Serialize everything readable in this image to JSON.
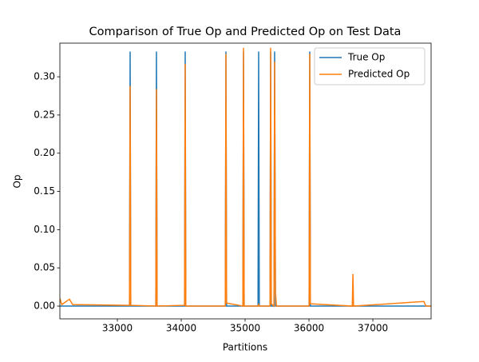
{
  "chart_data": {
    "type": "line",
    "title": "Comparison of True Op and Predicted Op on Test Data",
    "xlabel": "Partitions",
    "ylabel": "Op",
    "x": [
      32100,
      32130,
      32250,
      32300,
      33190,
      33200,
      33210,
      33602,
      33612,
      33622,
      34052,
      34062,
      34072,
      34690,
      34700,
      34710,
      34965,
      34975,
      34985,
      35202,
      35212,
      35222,
      35390,
      35400,
      35410,
      35452,
      35462,
      35475,
      35490,
      36002,
      36012,
      36022,
      36678,
      36688,
      36698,
      37800,
      37830,
      37912
    ],
    "series": [
      {
        "name": "True Op",
        "color": "#1f77b4",
        "values": [
          0,
          0,
          0,
          0,
          0,
          0.333,
          0,
          0,
          0.333,
          0,
          0,
          0.333,
          0,
          0,
          0.333,
          0,
          0,
          0.333,
          0,
          0,
          0.333,
          0,
          0,
          0.333,
          0,
          0,
          0.333,
          0,
          0,
          0,
          0.333,
          0,
          0,
          0,
          0,
          0,
          0,
          0
        ]
      },
      {
        "name": "Predicted Op",
        "color": "#ff7f0e",
        "values": [
          0.01,
          0.002,
          0.009,
          0.002,
          0.001,
          0.288,
          0.001,
          0,
          0.284,
          0,
          0.001,
          0.317,
          0,
          0,
          0.33,
          0.004,
          0,
          0.338,
          0,
          0,
          0.002,
          0,
          0,
          0.338,
          0.003,
          0,
          0.32,
          0.02,
          0,
          0,
          0.33,
          0.003,
          0,
          0.042,
          0,
          0.006,
          0,
          0
        ]
      }
    ],
    "xlim": [
      32100,
      37912
    ],
    "xticks": [
      33000,
      34000,
      35000,
      36000,
      37000
    ],
    "ylim": [
      -0.0167,
      0.344
    ],
    "yticks": [
      {
        "value": 0,
        "label": "0.00"
      },
      {
        "value": 0.05,
        "label": "0.05"
      },
      {
        "value": 0.1,
        "label": "0.10"
      },
      {
        "value": 0.15,
        "label": "0.15"
      },
      {
        "value": 0.2,
        "label": "0.20"
      },
      {
        "value": 0.25,
        "label": "0.25"
      },
      {
        "value": 0.3,
        "label": "0.30"
      }
    ],
    "grid": false,
    "legend": "upper-right"
  }
}
